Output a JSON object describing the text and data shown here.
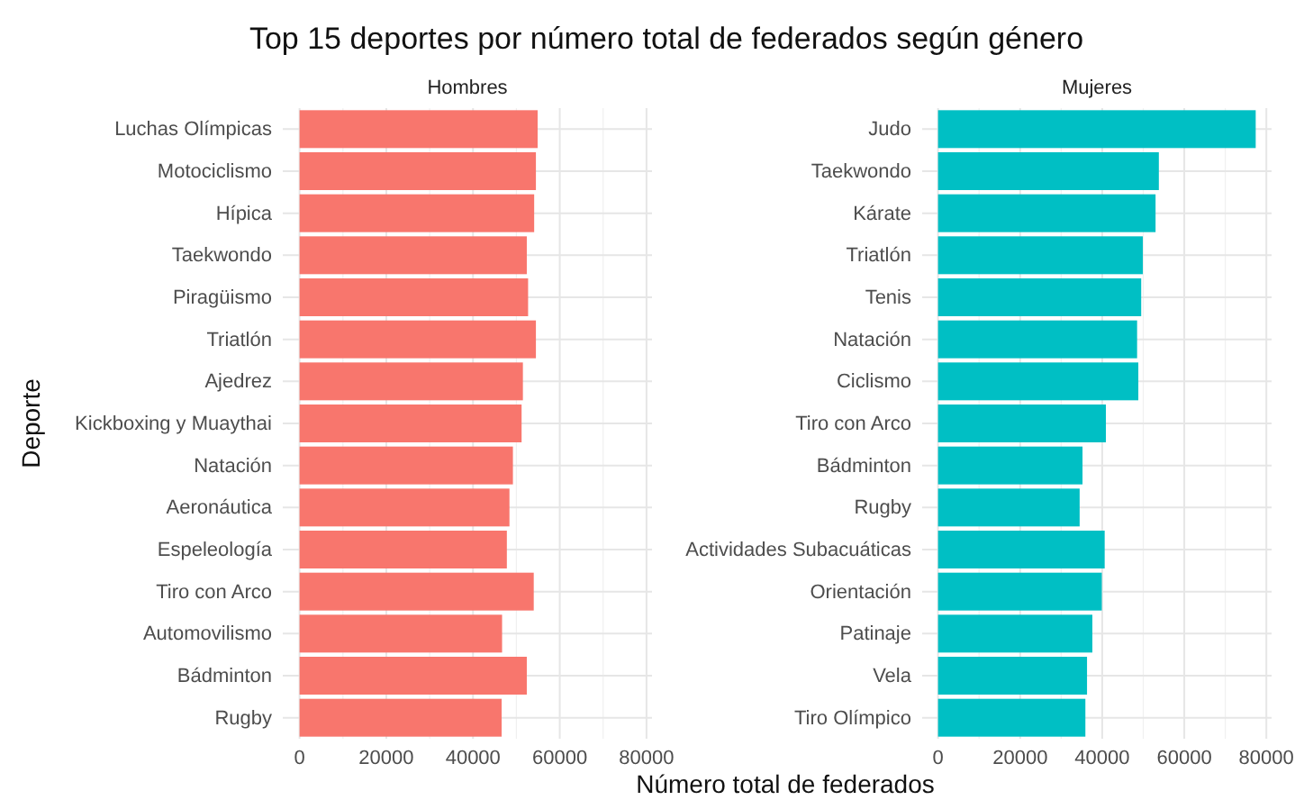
{
  "chart_data": [
    {
      "type": "bar",
      "orientation": "horizontal",
      "title": "Top 15 deportes por número total de federados según género",
      "subtitle": "Hombres",
      "ylabel": "Deporte",
      "xlabel": "Número total de federados",
      "categories": [
        "Luchas Olímpicas",
        "Motociclismo",
        "Hípica",
        "Taekwondo",
        "Piragüismo",
        "Triatlón",
        "Ajedrez",
        "Kickboxing y Muaythai",
        "Natación",
        "Aeronáutica",
        "Espeleología",
        "Tiro con Arco",
        "Automovilismo",
        "Bádminton",
        "Rugby"
      ],
      "values": [
        54900,
        54500,
        54100,
        52400,
        52700,
        54500,
        51500,
        51200,
        49200,
        48400,
        47800,
        54000,
        46700,
        52400,
        46600
      ],
      "color": "#f8766d",
      "xlim": [
        -3870,
        81270
      ],
      "xticks": [
        0,
        20000,
        40000,
        60000,
        80000
      ],
      "grid": true
    },
    {
      "type": "bar",
      "orientation": "horizontal",
      "subtitle": "Mujeres",
      "categories": [
        "Judo",
        "Taekwondo",
        "Kárate",
        "Triatlón",
        "Tenis",
        "Natación",
        "Ciclismo",
        "Tiro con Arco",
        "Bádminton",
        "Rugby",
        "Actividades Subacuáticas",
        "Orientación",
        "Patinaje",
        "Vela",
        "Tiro Olímpico"
      ],
      "values": [
        77400,
        53800,
        53000,
        49900,
        49500,
        48500,
        48800,
        40900,
        35200,
        34500,
        40600,
        39900,
        37600,
        36300,
        35900
      ],
      "color": "#00bfc4",
      "xlim": [
        -3870,
        81270
      ],
      "xticks": [
        0,
        20000,
        40000,
        60000,
        80000
      ],
      "grid": true
    }
  ]
}
